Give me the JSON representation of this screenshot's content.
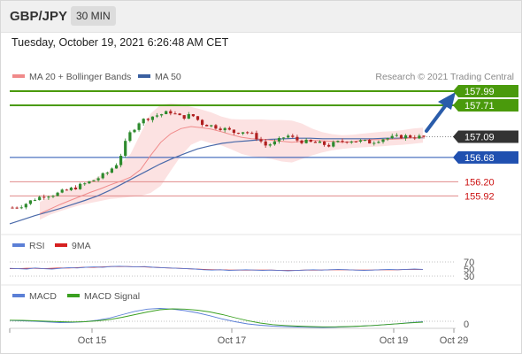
{
  "header": {
    "pair": "GBP/JPY",
    "timeframe": "30 MIN"
  },
  "timestamp": "Tuesday, October 19, 2021 6:26:48 AM CET",
  "legend": {
    "main": [
      {
        "label": "MA 20 + Bollinger Bands",
        "color": "#f08a8a"
      },
      {
        "label": "MA 50",
        "color": "#3a5fa0"
      }
    ],
    "credit": "Research © 2021 Trading Central",
    "rsi": [
      {
        "label": "RSI",
        "color": "#5b7fd6"
      },
      {
        "label": "9MA",
        "color": "#d62020"
      }
    ],
    "macd": [
      {
        "label": "MACD",
        "color": "#5b7fd6"
      },
      {
        "label": "MACD Signal",
        "color": "#3aa020"
      }
    ]
  },
  "colors": {
    "target": "#4a9a0c",
    "pivot": "#2050b0",
    "support": "#e08a8a",
    "support_text": "#cc1111",
    "last_price": "#333333",
    "arrow": "#2a5caa",
    "candle_up": "#2d8a2d",
    "candle_down": "#b02020"
  },
  "chart_data": {
    "type": "candlestick",
    "y_range": [
      155.28,
      158.13
    ],
    "price_points": [
      155.69,
      155.74,
      155.85,
      155.93,
      155.95,
      156.02,
      156.09,
      156.17,
      156.26,
      156.38,
      156.58,
      157.12,
      157.38,
      157.48,
      157.53,
      157.58,
      157.47,
      157.52,
      157.35,
      157.3,
      157.25,
      157.18,
      157.2,
      157.1,
      156.92,
      156.98,
      157.12,
      157.02,
      156.98,
      156.96,
      156.92,
      156.99,
      157.02,
      157.0,
      156.98,
      157.05,
      157.07,
      157.1,
      157.09,
      157.08
    ],
    "ma20_points": [
      155.57,
      155.66,
      155.75,
      155.83,
      155.91,
      155.99,
      156.06,
      156.14,
      156.21,
      156.29,
      156.44,
      156.72,
      156.98,
      157.15,
      157.25,
      157.29,
      157.27,
      157.24,
      157.19,
      157.13,
      157.08,
      157.05,
      157.04,
      157.02,
      157.0,
      156.98,
      157.0,
      157.02,
      157.01,
      157.0,
      156.98,
      156.99,
      157.02,
      157.03,
      157.03,
      157.04,
      157.05,
      157.07,
      157.08
    ],
    "ma50_points": [
      155.37,
      155.45,
      155.53,
      155.6,
      155.67,
      155.75,
      155.83,
      155.92,
      156.03,
      156.16,
      156.29,
      156.42,
      156.55,
      156.66,
      156.76,
      156.85,
      156.91,
      156.96,
      156.99,
      157.01,
      157.03,
      157.04,
      157.05,
      157.06,
      157.06,
      157.05,
      157.05,
      157.05,
      157.05,
      157.05,
      157.06,
      157.06,
      157.07,
      157.07
    ],
    "bb_upper_points": [
      155.8,
      155.9,
      155.98,
      156.06,
      156.14,
      156.22,
      156.32,
      156.42,
      156.55,
      156.75,
      157.15,
      157.55,
      157.72,
      157.75,
      157.73,
      157.68,
      157.63,
      157.57,
      157.49,
      157.44,
      157.43,
      157.43,
      157.43,
      157.42,
      157.42,
      157.41,
      157.35,
      157.25,
      157.18,
      157.14,
      157.12,
      157.13,
      157.15,
      157.17,
      157.19,
      157.2,
      157.22,
      157.25,
      157.27
    ],
    "bb_lower_points": [
      155.45,
      155.55,
      155.62,
      155.68,
      155.74,
      155.78,
      155.82,
      155.86,
      155.88,
      155.9,
      155.92,
      155.98,
      156.12,
      156.42,
      156.71,
      156.93,
      157.02,
      156.96,
      156.92,
      156.84,
      156.75,
      156.7,
      156.68,
      156.65,
      156.6,
      156.58,
      156.65,
      156.72,
      156.78,
      156.82,
      156.85,
      156.87,
      156.88,
      156.89,
      156.9,
      156.92,
      156.93,
      156.95,
      156.97
    ],
    "levels": [
      {
        "value": 157.99,
        "label": "157.99",
        "kind": "target"
      },
      {
        "value": 157.71,
        "label": "157.71",
        "kind": "target"
      },
      {
        "value": 157.09,
        "label": "157.09",
        "kind": "last"
      },
      {
        "value": 156.68,
        "label": "156.68",
        "kind": "pivot"
      },
      {
        "value": 156.2,
        "label": "156.20",
        "kind": "support"
      },
      {
        "value": 155.92,
        "label": "155.92",
        "kind": "support"
      }
    ],
    "rsi": {
      "ticks": [
        "70",
        "50",
        "30"
      ],
      "rsi_points": [
        52,
        51,
        50,
        53,
        51,
        50,
        52,
        54,
        53,
        55,
        56,
        55,
        57,
        58,
        57,
        56,
        57,
        55,
        54,
        53,
        52,
        51,
        50,
        48,
        47,
        48,
        46,
        47,
        48,
        47,
        46,
        47,
        46,
        45,
        46,
        47,
        48,
        47,
        48,
        49,
        48,
        47,
        46,
        47,
        48,
        49,
        48,
        49,
        50,
        49
      ],
      "ma9_points": [
        51,
        51,
        52,
        52,
        51,
        52,
        53,
        53,
        54,
        55,
        55,
        56,
        57,
        57,
        57,
        56,
        56,
        55,
        54,
        53,
        52,
        51,
        50,
        49,
        48,
        48,
        47,
        47,
        47,
        47,
        47,
        47,
        46,
        46,
        46,
        47,
        47,
        47,
        48,
        48,
        48,
        47,
        47,
        47,
        48,
        48,
        48,
        49,
        49,
        49
      ]
    },
    "macd": {
      "ticks": [
        "0"
      ],
      "macd_points": [
        0.04,
        0.02,
        0.0,
        -0.03,
        -0.06,
        -0.05,
        -0.02,
        0.05,
        0.15,
        0.3,
        0.45,
        0.55,
        0.58,
        0.55,
        0.48,
        0.38,
        0.25,
        0.1,
        -0.02,
        -0.12,
        -0.18,
        -0.22,
        -0.24,
        -0.26,
        -0.27,
        -0.28,
        -0.27,
        -0.25,
        -0.22,
        -0.19,
        -0.15,
        -0.11,
        -0.06,
        -0.02
      ],
      "signal_points": [
        0.05,
        0.04,
        0.02,
        0.0,
        -0.02,
        -0.03,
        -0.02,
        0.02,
        0.08,
        0.18,
        0.3,
        0.42,
        0.52,
        0.56,
        0.55,
        0.5,
        0.42,
        0.3,
        0.16,
        0.03,
        -0.08,
        -0.15,
        -0.19,
        -0.22,
        -0.24,
        -0.25,
        -0.25,
        -0.24,
        -0.22,
        -0.19,
        -0.15,
        -0.11,
        -0.07,
        -0.04
      ]
    },
    "x_tick_labels": [
      "Oct 15",
      "Oct 17",
      "Oct 19",
      "Oct 29"
    ]
  }
}
